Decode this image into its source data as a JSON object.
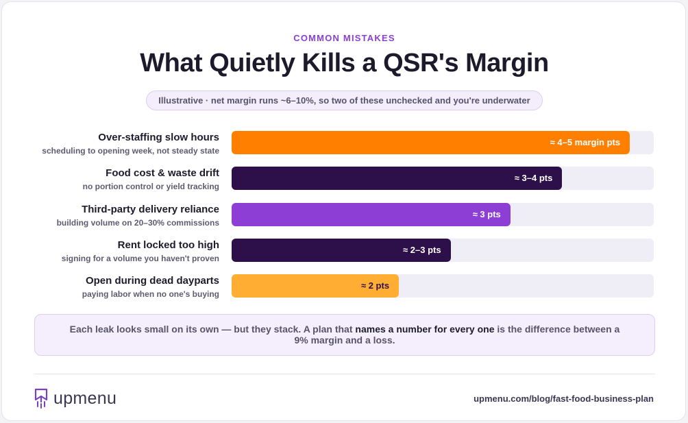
{
  "eyebrow": "COMMON MISTAKES",
  "title": "What Quietly Kills a QSR's Margin",
  "subtitle": "Illustrative · net margin runs ~6–10%, so two of these unchecked and you're underwater",
  "chart_data": {
    "type": "bar",
    "orientation": "horizontal",
    "xlim": [
      0,
      5.3
    ],
    "grid": false,
    "categories": [
      "Over-staffing slow hours",
      "Food cost & waste drift",
      "Third-party delivery reliance",
      "Rent locked too high",
      "Open during dead dayparts"
    ],
    "descriptions": [
      "scheduling to opening week, not steady state",
      "no portion control or yield tracking",
      "building volume on 20–30% commissions",
      "signing for a volume you haven't proven",
      "paying labor when no one's buying"
    ],
    "values": [
      5.0,
      4.15,
      3.5,
      2.75,
      2.1
    ],
    "value_labels": [
      "≈ 4–5 margin pts",
      "≈ 3–4 pts",
      "≈ 3 pts",
      "≈ 2–3 pts",
      "≈ 2 pts"
    ],
    "colors": [
      "#ff8000",
      "#2d0f4a",
      "#8d3fd5",
      "#2d0f4a",
      "#ffad33"
    ],
    "label_colors": [
      "#ffffff",
      "#ffffff",
      "#ffffff",
      "#ffffff",
      "#2d0f4a"
    ]
  },
  "callout": {
    "before": "Each leak looks small on its own — but they stack. A plan that ",
    "emphasis": "names a number for every one",
    "after": " is the difference between a 9% margin and a loss."
  },
  "footer": {
    "brand": "upmenu",
    "url": "upmenu.com/blog/fast-food-business-plan"
  }
}
